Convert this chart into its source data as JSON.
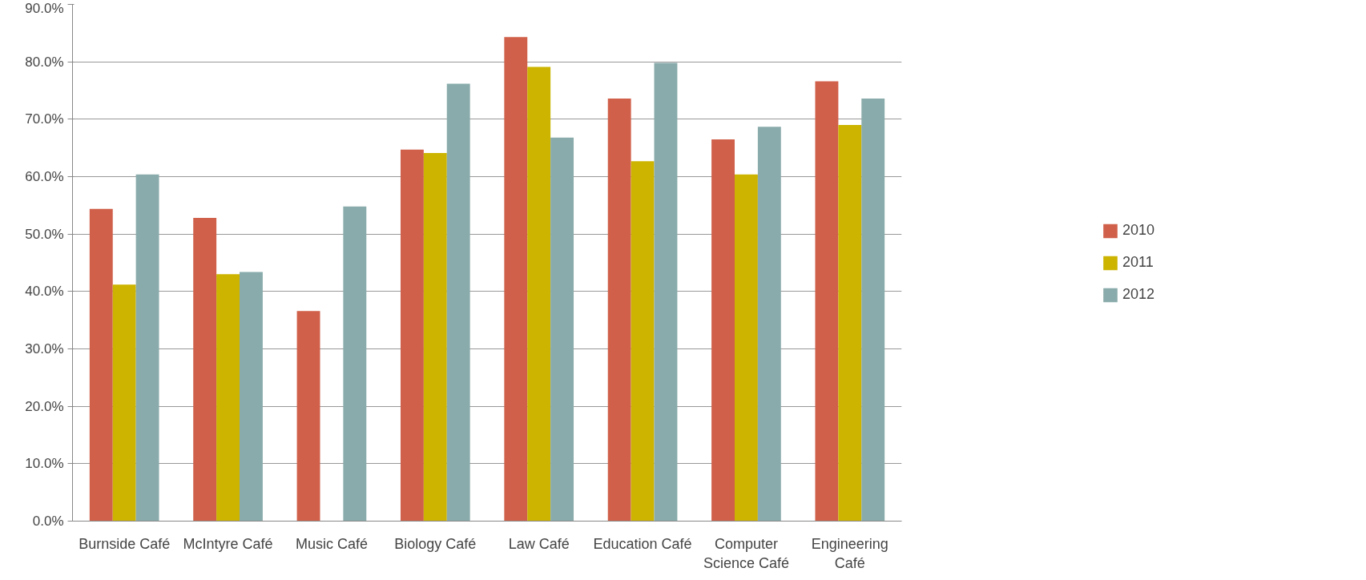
{
  "chart_data": {
    "type": "bar",
    "categories": [
      "Burnside Café",
      "McIntyre Café",
      "Music Café",
      "Biology Café",
      "Law Café",
      "Education Café",
      "Computer Science Café",
      "Engineering Café"
    ],
    "series": [
      {
        "name": "2010",
        "color": "#d0604a",
        "values": [
          54.4,
          52.8,
          36.6,
          64.7,
          84.3,
          73.6,
          66.5,
          76.6
        ]
      },
      {
        "name": "2011",
        "color": "#ccb400",
        "values": [
          41.2,
          43.0,
          null,
          64.1,
          79.1,
          62.7,
          60.4,
          69.0
        ]
      },
      {
        "name": "2012",
        "color": "#8aabab",
        "values": [
          60.4,
          43.4,
          54.8,
          76.2,
          66.8,
          79.8,
          68.7,
          73.6
        ]
      }
    ],
    "ylim": [
      0,
      90
    ],
    "yticks": [
      {
        "value": 0,
        "label": "0.0%"
      },
      {
        "value": 10,
        "label": "10.0%"
      },
      {
        "value": 20,
        "label": "20.0%"
      },
      {
        "value": 30,
        "label": "30.0%"
      },
      {
        "value": 40,
        "label": "40.0%"
      },
      {
        "value": 50,
        "label": "50.0%"
      },
      {
        "value": 60,
        "label": "60.0%"
      },
      {
        "value": 70,
        "label": "70.0%"
      },
      {
        "value": 80,
        "label": "80.0%"
      },
      {
        "value": 90,
        "label": "90.0%"
      }
    ],
    "grid": "y",
    "legend": "right"
  }
}
